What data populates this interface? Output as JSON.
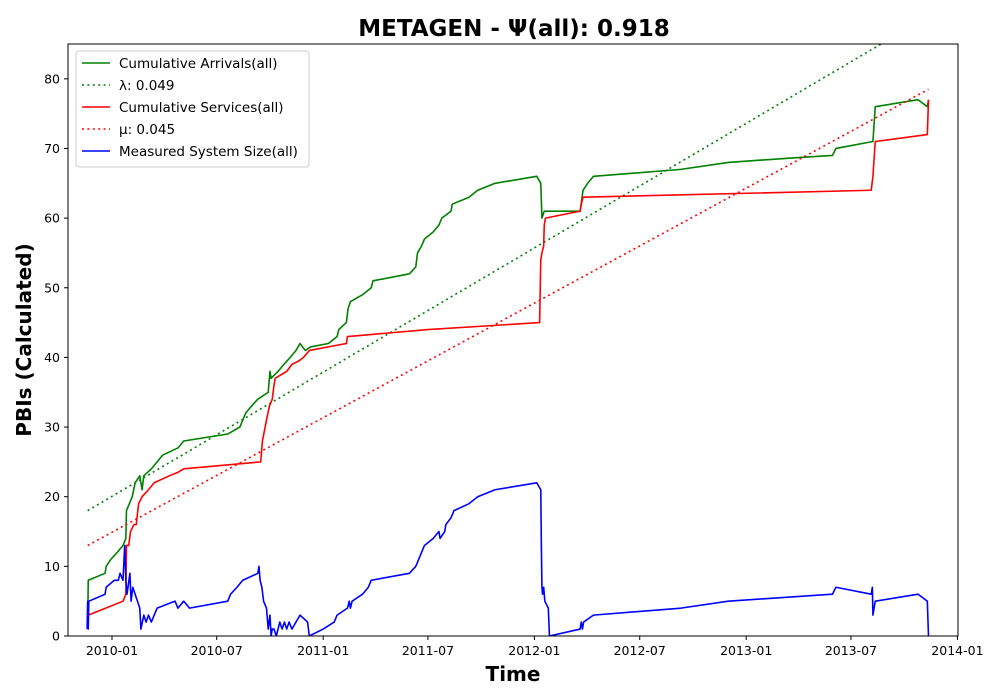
{
  "chart_data": {
    "type": "line",
    "title": "METAGEN -  Ψ(all): 0.918",
    "xlabel": "Time",
    "ylabel": "PBIs (Calculated)",
    "xlim": [
      "2009-10-17",
      "2014-01-02"
    ],
    "ylim": [
      0,
      85
    ],
    "x_ticks": [
      "2010-01",
      "2010-07",
      "2011-01",
      "2011-07",
      "2012-01",
      "2012-07",
      "2013-01",
      "2013-07",
      "2014-01"
    ],
    "y_ticks": [
      0,
      10,
      20,
      30,
      40,
      50,
      60,
      70,
      80
    ],
    "grid": false,
    "legend_position": "upper-left",
    "series": [
      {
        "name": "Cumulative Arrivals(all)",
        "color": "#008000",
        "style": "solid",
        "points": [
          [
            "2009-11-20",
            1
          ],
          [
            "2009-11-21",
            8
          ],
          [
            "2009-12-20",
            9
          ],
          [
            "2009-12-22",
            10
          ],
          [
            "2009-12-30",
            11
          ],
          [
            "2010-01-10",
            12
          ],
          [
            "2010-01-20",
            13
          ],
          [
            "2010-01-25",
            14
          ],
          [
            "2010-01-26",
            18
          ],
          [
            "2010-02-05",
            20
          ],
          [
            "2010-02-10",
            22
          ],
          [
            "2010-02-18",
            23
          ],
          [
            "2010-02-22",
            21
          ],
          [
            "2010-02-25",
            23
          ],
          [
            "2010-03-10",
            24
          ],
          [
            "2010-03-20",
            25
          ],
          [
            "2010-03-30",
            26
          ],
          [
            "2010-04-25",
            27
          ],
          [
            "2010-05-05",
            28
          ],
          [
            "2010-07-20",
            29
          ],
          [
            "2010-08-10",
            30
          ],
          [
            "2010-08-20",
            32
          ],
          [
            "2010-08-30",
            33
          ],
          [
            "2010-09-10",
            34
          ],
          [
            "2010-09-28",
            35
          ],
          [
            "2010-10-01",
            38
          ],
          [
            "2010-10-03",
            37
          ],
          [
            "2010-10-15",
            38
          ],
          [
            "2010-10-25",
            39
          ],
          [
            "2010-11-05",
            40
          ],
          [
            "2010-11-15",
            41
          ],
          [
            "2010-11-22",
            42
          ],
          [
            "2010-12-01",
            41
          ],
          [
            "2010-12-10",
            41.5
          ],
          [
            "2011-01-10",
            42
          ],
          [
            "2011-01-25",
            43
          ],
          [
            "2011-01-28",
            44
          ],
          [
            "2011-02-10",
            45
          ],
          [
            "2011-02-13",
            47
          ],
          [
            "2011-02-17",
            48
          ],
          [
            "2011-03-10",
            49
          ],
          [
            "2011-03-25",
            50
          ],
          [
            "2011-03-28",
            51
          ],
          [
            "2011-05-30",
            52
          ],
          [
            "2011-06-10",
            53
          ],
          [
            "2011-06-13",
            55
          ],
          [
            "2011-06-20",
            56
          ],
          [
            "2011-06-25",
            57
          ],
          [
            "2011-07-10",
            58
          ],
          [
            "2011-07-20",
            59
          ],
          [
            "2011-07-25",
            60
          ],
          [
            "2011-08-10",
            61
          ],
          [
            "2011-08-12",
            62
          ],
          [
            "2011-09-10",
            63
          ],
          [
            "2011-09-25",
            64
          ],
          [
            "2011-10-25",
            65
          ],
          [
            "2012-01-05",
            66
          ],
          [
            "2012-01-12",
            65
          ],
          [
            "2012-01-14",
            60
          ],
          [
            "2012-01-18",
            61
          ],
          [
            "2012-03-20",
            61
          ],
          [
            "2012-03-25",
            64
          ],
          [
            "2012-04-02",
            65
          ],
          [
            "2012-04-12",
            66
          ],
          [
            "2012-09-10",
            67
          ],
          [
            "2012-12-01",
            68
          ],
          [
            "2013-04-01",
            68.7
          ],
          [
            "2013-05-30",
            69
          ],
          [
            "2013-06-05",
            70
          ],
          [
            "2013-08-08",
            71
          ],
          [
            "2013-08-12",
            76
          ],
          [
            "2013-10-25",
            77
          ],
          [
            "2013-11-10",
            76
          ],
          [
            "2013-11-12",
            77
          ]
        ]
      },
      {
        "name": "λ: 0.049",
        "color": "#008000",
        "style": "dotted",
        "points": [
          [
            "2009-11-20",
            18
          ],
          [
            "2013-11-12",
            89
          ]
        ]
      },
      {
        "name": "Cumulative Services(all)",
        "color": "#ff0000",
        "style": "solid",
        "points": [
          [
            "2009-11-20",
            2
          ],
          [
            "2009-11-21",
            3
          ],
          [
            "2010-01-20",
            5
          ],
          [
            "2010-01-25",
            6
          ],
          [
            "2010-01-26",
            13
          ],
          [
            "2010-01-30",
            13
          ],
          [
            "2010-02-02",
            15
          ],
          [
            "2010-02-08",
            16
          ],
          [
            "2010-02-12",
            16
          ],
          [
            "2010-02-16",
            19
          ],
          [
            "2010-02-22",
            20
          ],
          [
            "2010-03-05",
            21
          ],
          [
            "2010-03-15",
            22
          ],
          [
            "2010-04-10",
            23
          ],
          [
            "2010-04-25",
            23.5
          ],
          [
            "2010-05-05",
            24
          ],
          [
            "2010-09-15",
            25
          ],
          [
            "2010-09-18",
            28
          ],
          [
            "2010-09-25",
            31
          ],
          [
            "2010-09-30",
            33
          ],
          [
            "2010-10-05",
            34
          ],
          [
            "2010-10-08",
            36
          ],
          [
            "2010-10-10",
            37
          ],
          [
            "2010-10-30",
            38
          ],
          [
            "2010-11-08",
            39
          ],
          [
            "2010-11-20",
            39.5
          ],
          [
            "2010-11-28",
            40
          ],
          [
            "2010-12-08",
            41
          ],
          [
            "2011-02-10",
            42
          ],
          [
            "2011-02-12",
            43
          ],
          [
            "2011-07-01",
            44
          ],
          [
            "2012-01-10",
            45
          ],
          [
            "2012-01-12",
            54
          ],
          [
            "2012-01-14",
            55
          ],
          [
            "2012-01-17",
            56
          ],
          [
            "2012-01-18",
            59
          ],
          [
            "2012-01-20",
            60
          ],
          [
            "2012-03-20",
            61
          ],
          [
            "2012-03-22",
            62
          ],
          [
            "2012-03-25",
            63
          ],
          [
            "2013-08-05",
            64
          ],
          [
            "2013-08-08",
            66
          ],
          [
            "2013-08-12",
            71
          ],
          [
            "2013-11-10",
            72
          ],
          [
            "2013-11-12",
            77
          ]
        ]
      },
      {
        "name": "μ: 0.045",
        "color": "#ff0000",
        "style": "dotted",
        "points": [
          [
            "2009-11-20",
            13
          ],
          [
            "2013-11-12",
            78.5
          ]
        ]
      },
      {
        "name": "Measured System Size(all)",
        "color": "#0000ff",
        "style": "solid",
        "points": [
          [
            "2009-11-19",
            1
          ],
          [
            "2009-11-20",
            5
          ],
          [
            "2009-11-21",
            1
          ],
          [
            "2009-11-22",
            5
          ],
          [
            "2009-12-20",
            6
          ],
          [
            "2009-12-22",
            7
          ],
          [
            "2010-01-05",
            8
          ],
          [
            "2010-01-12",
            8
          ],
          [
            "2010-01-15",
            9
          ],
          [
            "2010-01-20",
            8
          ],
          [
            "2010-01-23",
            13
          ],
          [
            "2010-01-25",
            8
          ],
          [
            "2010-01-27",
            6
          ],
          [
            "2010-02-01",
            9
          ],
          [
            "2010-02-03",
            5
          ],
          [
            "2010-02-06",
            7
          ],
          [
            "2010-02-10",
            6
          ],
          [
            "2010-02-14",
            5
          ],
          [
            "2010-02-18",
            4
          ],
          [
            "2010-02-20",
            1
          ],
          [
            "2010-02-25",
            3
          ],
          [
            "2010-03-01",
            2
          ],
          [
            "2010-03-05",
            3
          ],
          [
            "2010-03-10",
            2
          ],
          [
            "2010-03-15",
            3
          ],
          [
            "2010-03-20",
            4
          ],
          [
            "2010-04-20",
            5
          ],
          [
            "2010-04-25",
            4
          ],
          [
            "2010-05-05",
            5
          ],
          [
            "2010-05-15",
            4
          ],
          [
            "2010-07-20",
            5
          ],
          [
            "2010-07-25",
            6
          ],
          [
            "2010-08-05",
            7
          ],
          [
            "2010-08-15",
            8
          ],
          [
            "2010-09-10",
            9
          ],
          [
            "2010-09-12",
            10
          ],
          [
            "2010-09-14",
            8
          ],
          [
            "2010-09-17",
            7
          ],
          [
            "2010-09-20",
            5
          ],
          [
            "2010-09-25",
            4
          ],
          [
            "2010-09-28",
            1
          ],
          [
            "2010-10-01",
            3
          ],
          [
            "2010-10-03",
            0
          ],
          [
            "2010-10-05",
            1
          ],
          [
            "2010-10-08",
            1
          ],
          [
            "2010-10-12",
            0
          ],
          [
            "2010-10-18",
            2
          ],
          [
            "2010-10-22",
            1
          ],
          [
            "2010-10-26",
            2
          ],
          [
            "2010-10-30",
            1
          ],
          [
            "2010-11-03",
            2
          ],
          [
            "2010-11-08",
            1
          ],
          [
            "2010-11-15",
            2
          ],
          [
            "2010-11-22",
            3
          ],
          [
            "2010-12-05",
            2
          ],
          [
            "2010-12-08",
            0
          ],
          [
            "2011-01-01",
            1
          ],
          [
            "2011-01-20",
            2
          ],
          [
            "2011-01-25",
            3
          ],
          [
            "2011-02-12",
            4
          ],
          [
            "2011-02-15",
            5
          ],
          [
            "2011-02-17",
            4
          ],
          [
            "2011-02-20",
            5
          ],
          [
            "2011-03-10",
            6
          ],
          [
            "2011-03-20",
            7
          ],
          [
            "2011-03-25",
            8
          ],
          [
            "2011-05-30",
            9
          ],
          [
            "2011-06-10",
            10
          ],
          [
            "2011-06-15",
            11
          ],
          [
            "2011-06-20",
            12
          ],
          [
            "2011-06-25",
            13
          ],
          [
            "2011-07-10",
            14
          ],
          [
            "2011-07-20",
            15
          ],
          [
            "2011-07-22",
            14
          ],
          [
            "2011-07-30",
            15
          ],
          [
            "2011-08-01",
            16
          ],
          [
            "2011-08-10",
            17
          ],
          [
            "2011-08-15",
            18
          ],
          [
            "2011-09-10",
            19
          ],
          [
            "2011-09-25",
            20
          ],
          [
            "2011-10-25",
            21
          ],
          [
            "2012-01-05",
            22
          ],
          [
            "2012-01-12",
            21
          ],
          [
            "2012-01-13",
            13
          ],
          [
            "2012-01-14",
            7
          ],
          [
            "2012-01-15",
            6
          ],
          [
            "2012-01-17",
            7
          ],
          [
            "2012-01-19",
            5
          ],
          [
            "2012-01-25",
            4
          ],
          [
            "2012-01-27",
            0
          ],
          [
            "2012-03-20",
            1
          ],
          [
            "2012-03-22",
            2
          ],
          [
            "2012-03-24",
            1
          ],
          [
            "2012-03-26",
            2
          ],
          [
            "2012-04-12",
            3
          ],
          [
            "2012-09-10",
            4
          ],
          [
            "2012-12-01",
            5
          ],
          [
            "2013-05-30",
            6
          ],
          [
            "2013-06-05",
            7
          ],
          [
            "2013-08-05",
            6
          ],
          [
            "2013-08-07",
            7
          ],
          [
            "2013-08-08",
            3
          ],
          [
            "2013-08-12",
            5
          ],
          [
            "2013-10-25",
            6
          ],
          [
            "2013-11-10",
            5
          ],
          [
            "2013-11-12",
            0
          ]
        ]
      }
    ]
  }
}
